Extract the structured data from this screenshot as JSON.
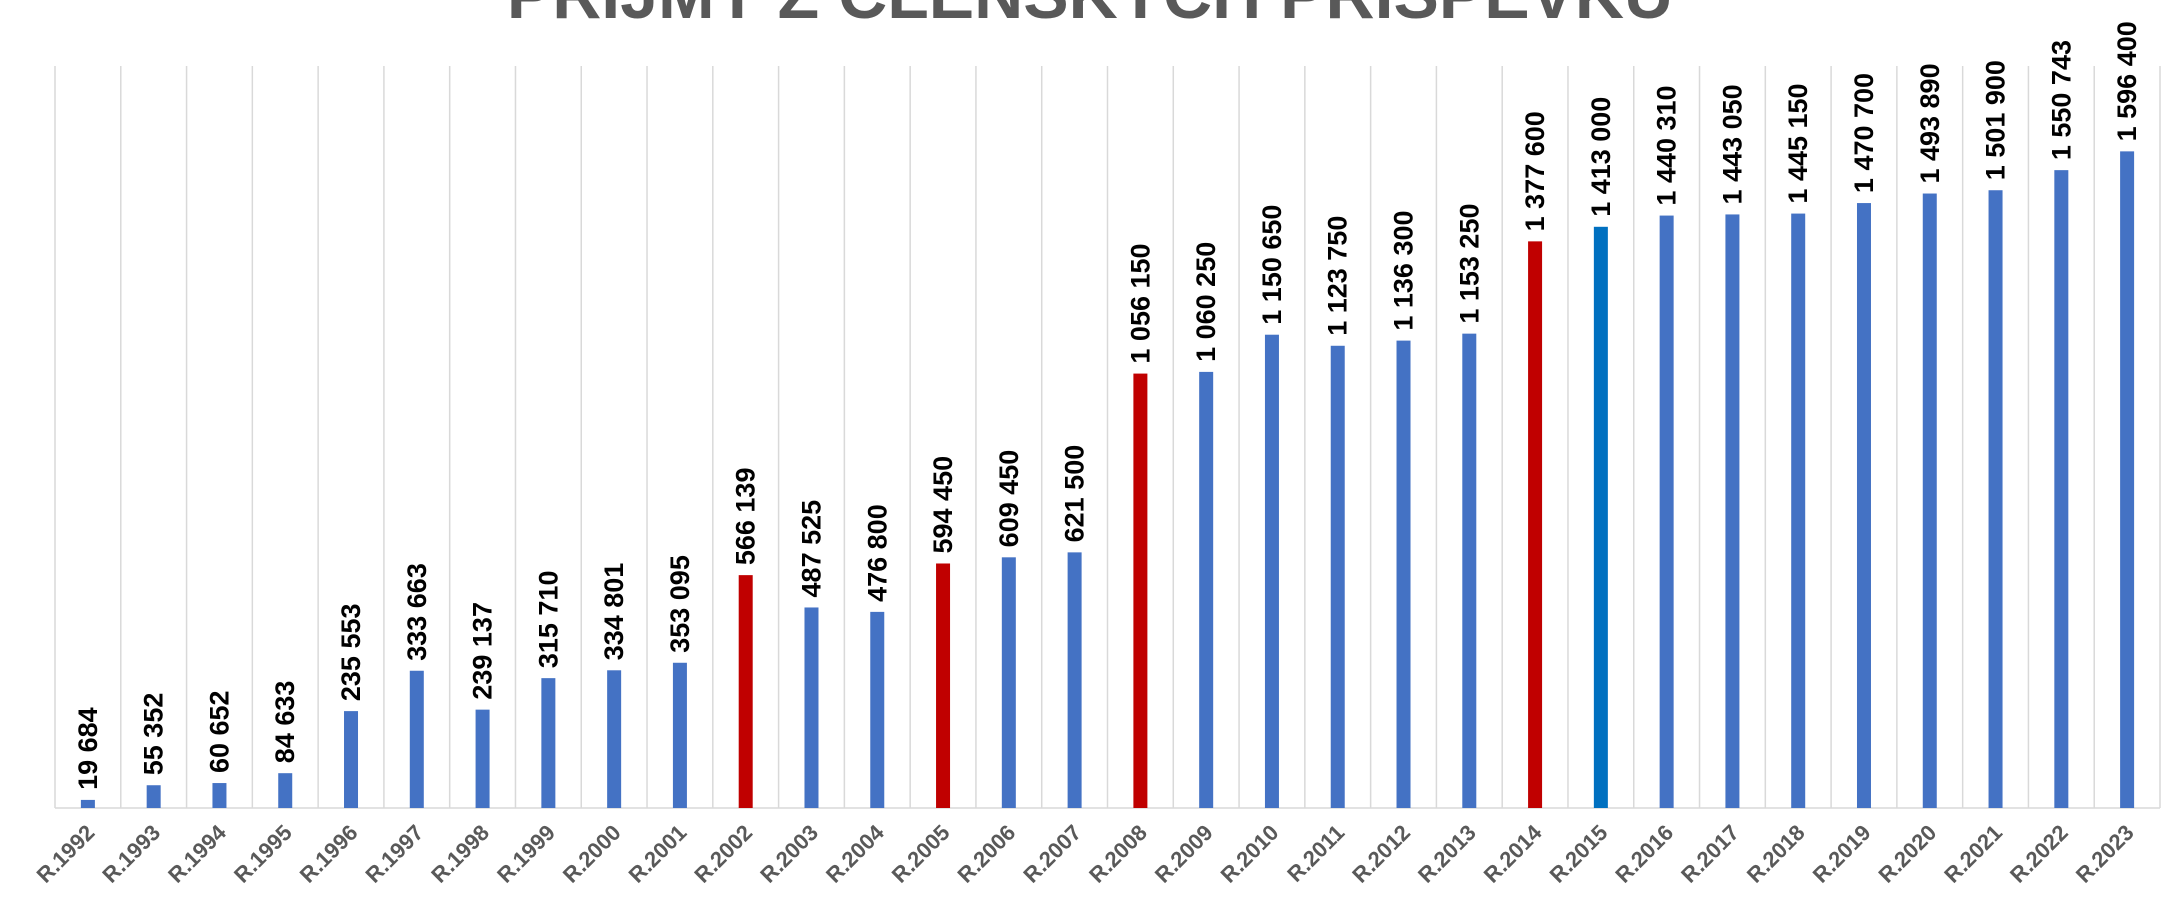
{
  "chart_data": {
    "type": "bar",
    "title": "PŘÍJMY Z ČLENSKÝCH PŘÍSPĚVKŮ",
    "categories": [
      "R.1992",
      "R.1993",
      "R.1994",
      "R.1995",
      "R.1996",
      "R.1997",
      "R.1998",
      "R.1999",
      "R.2000",
      "R.2001",
      "R.2002",
      "R.2003",
      "R.2004",
      "R.2005",
      "R.2006",
      "R.2007",
      "R.2008",
      "R.2009",
      "R.2010",
      "R.2011",
      "R.2012",
      "R.2013",
      "R.2014",
      "R.2015",
      "R.2016",
      "R.2017",
      "R.2018",
      "R.2019",
      "R.2020",
      "R.2021",
      "R.2022",
      "R.2023"
    ],
    "values": [
      19684,
      55352,
      60652,
      84633,
      235553,
      333663,
      239137,
      315710,
      334801,
      353095,
      566139,
      487525,
      476800,
      594450,
      609450,
      621500,
      1056150,
      1060250,
      1150650,
      1123750,
      1136300,
      1153250,
      1377600,
      1413000,
      1440310,
      1443050,
      1445150,
      1470700,
      1493890,
      1501900,
      1550743,
      1596400
    ],
    "value_labels": [
      "19 684",
      "55 352",
      "60 652",
      "84 633",
      "235 553",
      "333 663",
      "239 137",
      "315 710",
      "334 801",
      "353 095",
      "566 139",
      "487 525",
      "476 800",
      "594 450",
      "609 450",
      "621 500",
      "1 056 150",
      "1 060 250",
      "1 150 650",
      "1 123 750",
      "1 136 300",
      "1 153 250",
      "1 377 600",
      "1 413 000",
      "1 440 310",
      "1 443 050",
      "1 445 150",
      "1 470 700",
      "1 493 890",
      "1 501 900",
      "1 550 743",
      "1 596 400"
    ],
    "colors": [
      "#4472c4",
      "#4472c4",
      "#4472c4",
      "#4472c4",
      "#4472c4",
      "#4472c4",
      "#4472c4",
      "#4472c4",
      "#4472c4",
      "#4472c4",
      "#c00000",
      "#4472c4",
      "#4472c4",
      "#c00000",
      "#4472c4",
      "#4472c4",
      "#c00000",
      "#4472c4",
      "#4472c4",
      "#4472c4",
      "#4472c4",
      "#4472c4",
      "#c00000",
      "#0070c0",
      "#4472c4",
      "#4472c4",
      "#4472c4",
      "#4472c4",
      "#4472c4",
      "#4472c4",
      "#4472c4",
      "#4472c4"
    ]
  }
}
